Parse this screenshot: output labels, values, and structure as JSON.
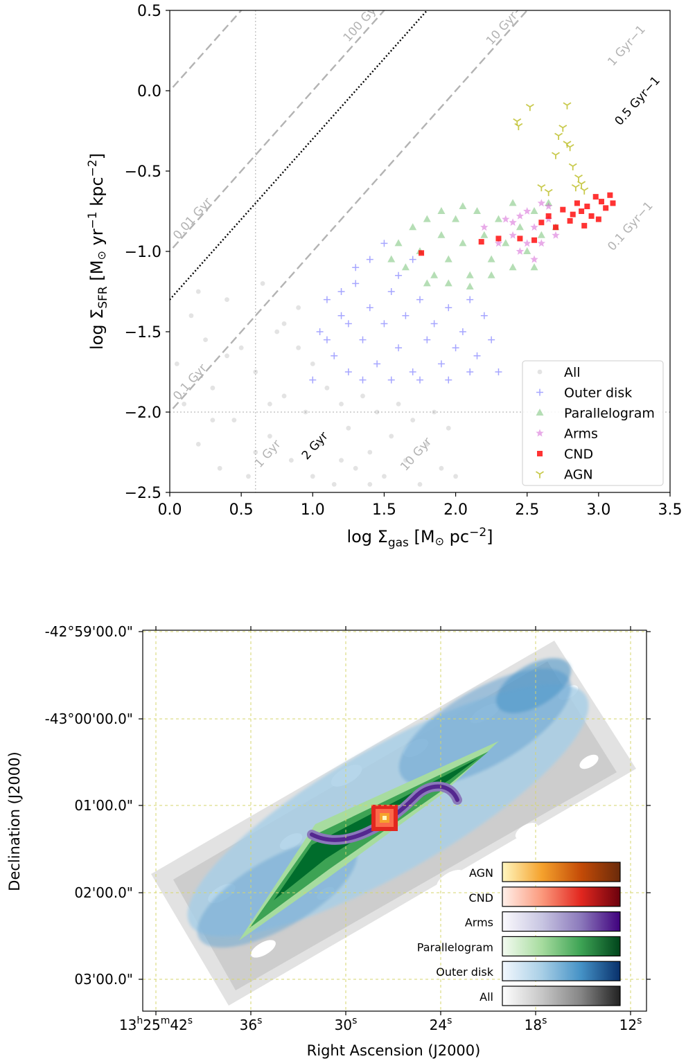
{
  "chart_data": [
    {
      "type": "scatter",
      "xlabel": "log Σgas [M⊙ pc−2]",
      "xlabel_parts": {
        "pre": "log Σ",
        "sub": "gas",
        "unit_open": " [M",
        "sun": "⊙",
        "unit_mid": " pc",
        "sup": "−2",
        "close": "]"
      },
      "ylabel": "log ΣSFR [M⊙ yr−1 kpc−2]",
      "ylabel_parts": {
        "pre": "log Σ",
        "sub": "SFR",
        "unit_open": " [M",
        "sun": "⊙",
        "yr": " yr",
        "sup1": "−1",
        "kpc": " kpc",
        "sup2": "−2",
        "close": "]"
      },
      "xlim": [
        0.0,
        3.5
      ],
      "ylim": [
        -2.5,
        0.5
      ],
      "xticks": [
        "0.0",
        "0.5",
        "1.0",
        "1.5",
        "2.0",
        "2.5",
        "3.0",
        "3.5"
      ],
      "yticks": [
        "0.5",
        "0.0",
        "−0.5",
        "−1.0",
        "−1.5",
        "−2.0",
        "−2.5"
      ],
      "legend_position": "lower-right",
      "reference_lines": [
        {
          "label": "100 Gyr−1",
          "offset": 1.0
        },
        {
          "label": "10 Gyr−1",
          "offset": 0.0
        },
        {
          "label": "1 Gyr−1",
          "offset": -1.0
        },
        {
          "label": "0.5 Gyr−1",
          "offset": -1.3
        },
        {
          "label": "0.1 Gyr−1",
          "offset": -2.0
        },
        {
          "label": "0.01 Gyr",
          "offset": 1.0
        },
        {
          "label": "0.1 Gyr",
          "offset": 0.0
        },
        {
          "label": "1 Gyr",
          "offset": -1.0
        },
        {
          "label": "2 Gyr",
          "offset": -1.3
        },
        {
          "label": "10 Gyr",
          "offset": -2.0
        }
      ],
      "series": [
        {
          "name": "All",
          "marker": "circle",
          "color": "#7f7f7f",
          "points": [
            [
              0.05,
              -1.7
            ],
            [
              0.1,
              -1.95
            ],
            [
              0.15,
              -1.4
            ],
            [
              0.2,
              -2.2
            ],
            [
              0.25,
              -1.55
            ],
            [
              0.3,
              -1.85
            ],
            [
              0.35,
              -2.35
            ],
            [
              0.4,
              -1.3
            ],
            [
              0.45,
              -2.05
            ],
            [
              0.5,
              -1.6
            ],
            [
              0.55,
              -2.4
            ],
            [
              0.6,
              -1.75
            ],
            [
              0.65,
              -1.2
            ],
            [
              0.7,
              -2.15
            ],
            [
              0.75,
              -1.5
            ],
            [
              0.8,
              -1.9
            ],
            [
              0.85,
              -2.3
            ],
            [
              0.9,
              -1.35
            ],
            [
              0.95,
              -2.0
            ],
            [
              1.0,
              -1.7
            ],
            [
              1.05,
              -2.2
            ],
            [
              1.1,
              -1.85
            ],
            [
              1.15,
              -2.45
            ],
            [
              1.2,
              -1.95
            ],
            [
              1.25,
              -2.1
            ],
            [
              1.3,
              -2.35
            ],
            [
              1.35,
              -1.9
            ],
            [
              1.4,
              -2.25
            ],
            [
              1.45,
              -2.0
            ],
            [
              1.5,
              -2.4
            ],
            [
              1.55,
              -2.15
            ],
            [
              1.6,
              -1.95
            ],
            [
              1.65,
              -2.3
            ],
            [
              1.7,
              -2.05
            ],
            [
              1.75,
              -2.45
            ],
            [
              1.8,
              -2.2
            ],
            [
              1.85,
              -2.0
            ],
            [
              1.9,
              -2.35
            ],
            [
              1.95,
              -2.1
            ],
            [
              2.0,
              -2.4
            ],
            [
              0.2,
              -1.25
            ],
            [
              0.4,
              -1.65
            ],
            [
              0.6,
              -2.25
            ],
            [
              0.8,
              -1.45
            ],
            [
              1.0,
              -2.4
            ],
            [
              0.3,
              -2.05
            ],
            [
              0.7,
              -1.95
            ],
            [
              0.9,
              -1.6
            ],
            [
              1.2,
              -2.3
            ],
            [
              1.4,
              -2.45
            ]
          ]
        },
        {
          "name": "Outer disk",
          "marker": "plus",
          "color": "#0000ff",
          "points": [
            [
              1.0,
              -1.8
            ],
            [
              1.05,
              -1.5
            ],
            [
              1.1,
              -1.3
            ],
            [
              1.15,
              -1.65
            ],
            [
              1.2,
              -1.4
            ],
            [
              1.25,
              -1.75
            ],
            [
              1.3,
              -1.2
            ],
            [
              1.35,
              -1.55
            ],
            [
              1.4,
              -1.35
            ],
            [
              1.45,
              -1.7
            ],
            [
              1.5,
              -1.45
            ],
            [
              1.55,
              -1.25
            ],
            [
              1.6,
              -1.6
            ],
            [
              1.65,
              -1.4
            ],
            [
              1.7,
              -1.75
            ],
            [
              1.75,
              -1.3
            ],
            [
              1.8,
              -1.55
            ],
            [
              1.85,
              -1.45
            ],
            [
              1.9,
              -1.7
            ],
            [
              1.95,
              -1.35
            ],
            [
              2.0,
              -1.6
            ],
            [
              2.05,
              -1.5
            ],
            [
              2.1,
              -1.3
            ],
            [
              2.15,
              -1.65
            ],
            [
              2.2,
              -1.4
            ],
            [
              2.25,
              -1.55
            ],
            [
              2.3,
              -1.75
            ],
            [
              1.4,
              -1.05
            ],
            [
              1.5,
              -0.95
            ],
            [
              1.3,
              -1.1
            ],
            [
              1.2,
              -1.25
            ],
            [
              1.6,
              -1.15
            ],
            [
              1.7,
              -1.05
            ],
            [
              1.1,
              -1.55
            ],
            [
              1.35,
              -1.8
            ],
            [
              1.55,
              -1.8
            ],
            [
              1.75,
              -1.8
            ],
            [
              1.95,
              -1.8
            ],
            [
              2.1,
              -1.75
            ],
            [
              1.25,
              -1.45
            ]
          ]
        },
        {
          "name": "Parallelogram",
          "marker": "triangle",
          "color": "#2ca02c",
          "points": [
            [
              1.55,
              -1.05
            ],
            [
              1.6,
              -0.95
            ],
            [
              1.65,
              -1.1
            ],
            [
              1.7,
              -0.85
            ],
            [
              1.75,
              -1.0
            ],
            [
              1.8,
              -0.8
            ],
            [
              1.85,
              -1.15
            ],
            [
              1.9,
              -0.9
            ],
            [
              1.95,
              -1.05
            ],
            [
              2.0,
              -0.8
            ],
            [
              2.05,
              -0.95
            ],
            [
              2.1,
              -1.15
            ],
            [
              2.15,
              -0.75
            ],
            [
              2.2,
              -0.9
            ],
            [
              2.25,
              -1.05
            ],
            [
              2.3,
              -0.8
            ],
            [
              2.35,
              -0.95
            ],
            [
              2.4,
              -0.7
            ],
            [
              2.45,
              -0.85
            ],
            [
              2.5,
              -1.0
            ],
            [
              2.55,
              -0.75
            ],
            [
              2.6,
              -0.9
            ],
            [
              2.65,
              -0.7
            ],
            [
              2.7,
              -0.85
            ],
            [
              1.8,
              -1.2
            ],
            [
              1.95,
              -1.2
            ],
            [
              2.1,
              -1.22
            ],
            [
              2.25,
              -1.15
            ],
            [
              2.4,
              -1.1
            ],
            [
              2.55,
              -1.1
            ],
            [
              1.9,
              -0.75
            ],
            [
              2.05,
              -0.72
            ]
          ]
        },
        {
          "name": "Arms",
          "marker": "star",
          "color": "#cc44cc",
          "points": [
            [
              2.2,
              -0.85
            ],
            [
              2.3,
              -0.95
            ],
            [
              2.35,
              -0.8
            ],
            [
              2.4,
              -0.9
            ],
            [
              2.45,
              -1.0
            ],
            [
              2.5,
              -0.75
            ],
            [
              2.55,
              -0.85
            ],
            [
              2.6,
              -0.7
            ],
            [
              2.65,
              -0.8
            ],
            [
              2.7,
              -0.9
            ],
            [
              2.55,
              -1.05
            ],
            [
              2.6,
              -0.95
            ],
            [
              2.5,
              -0.95
            ],
            [
              2.45,
              -0.78
            ],
            [
              2.65,
              -0.72
            ],
            [
              2.4,
              -0.82
            ]
          ]
        },
        {
          "name": "CND",
          "marker": "square",
          "color": "#ff0000",
          "points": [
            [
              1.76,
              -1.01
            ],
            [
              2.18,
              -0.94
            ],
            [
              2.3,
              -0.92
            ],
            [
              2.45,
              -0.92
            ],
            [
              2.55,
              -0.93
            ],
            [
              2.6,
              -0.82
            ],
            [
              2.65,
              -0.78
            ],
            [
              2.7,
              -0.85
            ],
            [
              2.75,
              -0.74
            ],
            [
              2.8,
              -0.81
            ],
            [
              2.85,
              -0.7
            ],
            [
              2.88,
              -0.75
            ],
            [
              2.92,
              -0.72
            ],
            [
              2.95,
              -0.78
            ],
            [
              2.98,
              -0.66
            ],
            [
              3.02,
              -0.69
            ],
            [
              3.05,
              -0.73
            ],
            [
              3.08,
              -0.65
            ],
            [
              3.1,
              -0.7
            ],
            [
              2.9,
              -0.84
            ],
            [
              3.0,
              -0.8
            ],
            [
              2.82,
              -0.77
            ]
          ]
        },
        {
          "name": "AGN",
          "marker": "tri_down",
          "color": "#bcbd22",
          "points": [
            [
              2.43,
              -0.19
            ],
            [
              2.44,
              -0.22
            ],
            [
              2.52,
              -0.1
            ],
            [
              2.6,
              -0.6
            ],
            [
              2.65,
              -0.63
            ],
            [
              2.7,
              -0.4
            ],
            [
              2.72,
              -0.28
            ],
            [
              2.78,
              -0.33
            ],
            [
              2.8,
              -0.35
            ],
            [
              2.82,
              -0.47
            ],
            [
              2.84,
              -0.6
            ],
            [
              2.86,
              -0.54
            ],
            [
              2.88,
              -0.58
            ],
            [
              2.9,
              -0.62
            ],
            [
              2.78,
              -0.09
            ],
            [
              2.75,
              -0.23
            ]
          ]
        }
      ]
    },
    {
      "type": "heatmap",
      "xlabel": "Right Ascension (J2000)",
      "ylabel": "Declination (J2000)",
      "xticks": [
        "13h25m42s",
        "36s",
        "30s",
        "24s",
        "18s",
        "12s"
      ],
      "xticks_parts": [
        {
          "parts": [
            [
              "13",
              ""
            ],
            [
              "h",
              "sup"
            ],
            [
              "25",
              ""
            ],
            [
              "m",
              "sup"
            ],
            [
              "42",
              ""
            ],
            [
              "s",
              "sup"
            ]
          ]
        },
        {
          "parts": [
            [
              "36",
              ""
            ],
            [
              "s",
              "sup"
            ]
          ]
        },
        {
          "parts": [
            [
              "30",
              ""
            ],
            [
              "s",
              "sup"
            ]
          ]
        },
        {
          "parts": [
            [
              "24",
              ""
            ],
            [
              "s",
              "sup"
            ]
          ]
        },
        {
          "parts": [
            [
              "18",
              ""
            ],
            [
              "s",
              "sup"
            ]
          ]
        },
        {
          "parts": [
            [
              "12",
              ""
            ],
            [
              "s",
              "sup"
            ]
          ]
        }
      ],
      "yticks": [
        "-42°59'00.0\"",
        "-43°00'00.0\"",
        "01'00.0\"",
        "02'00.0\"",
        "03'00.0\""
      ],
      "grid": true,
      "colorbars": [
        {
          "label": "AGN",
          "colors": [
            "#fff7c0",
            "#f5a22d",
            "#c44b07",
            "#6a2a0a"
          ]
        },
        {
          "label": "CND",
          "colors": [
            "#fff0ea",
            "#fb9a7d",
            "#e2271f",
            "#6b010d"
          ]
        },
        {
          "label": "Arms",
          "colors": [
            "#fbfafd",
            "#c8c6e2",
            "#8b79bb",
            "#3f007d"
          ]
        },
        {
          "label": "Parallelogram",
          "colors": [
            "#f4fbf1",
            "#a7dc9f",
            "#3da354",
            "#00441b"
          ]
        },
        {
          "label": "Outer disk",
          "colors": [
            "#f3f8fe",
            "#a9cfe6",
            "#4592c6",
            "#08306b"
          ]
        },
        {
          "label": "All",
          "colors": [
            "#fefefe",
            "#c7c7c7",
            "#858585",
            "#222222"
          ]
        }
      ]
    }
  ]
}
